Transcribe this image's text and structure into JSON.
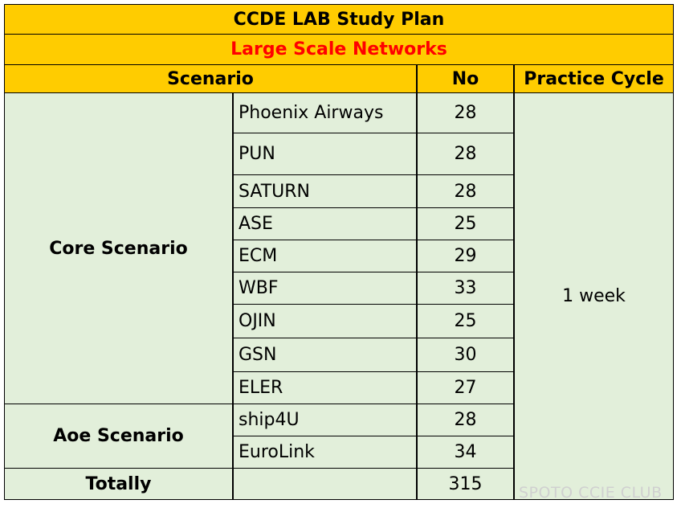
{
  "title": "CCDE LAB Study Plan",
  "subtitle": "Large Scale Networks",
  "header": [
    "Scenario",
    "No",
    "Practice Cycle"
  ],
  "groups": [
    {
      "name": "Core Scenario",
      "rows": [
        [
          "Phoenix Airways",
          28
        ],
        [
          "PUN",
          28
        ],
        [
          "SATURN",
          28
        ],
        [
          "ASE",
          25
        ],
        [
          "ECM",
          29
        ],
        [
          "WBF",
          33
        ],
        [
          "OJIN",
          25
        ],
        [
          "GSN",
          30
        ],
        [
          "ELER",
          27
        ]
      ]
    },
    {
      "name": "Aoe Scenario",
      "rows": [
        [
          "ship4U",
          28
        ],
        [
          "EuroLink",
          34
        ]
      ]
    }
  ],
  "practice_cycle": "1 week",
  "total": {
    "label": "Totally",
    "value": 315
  },
  "watermark": "SPOTO CCIE CLUB"
}
